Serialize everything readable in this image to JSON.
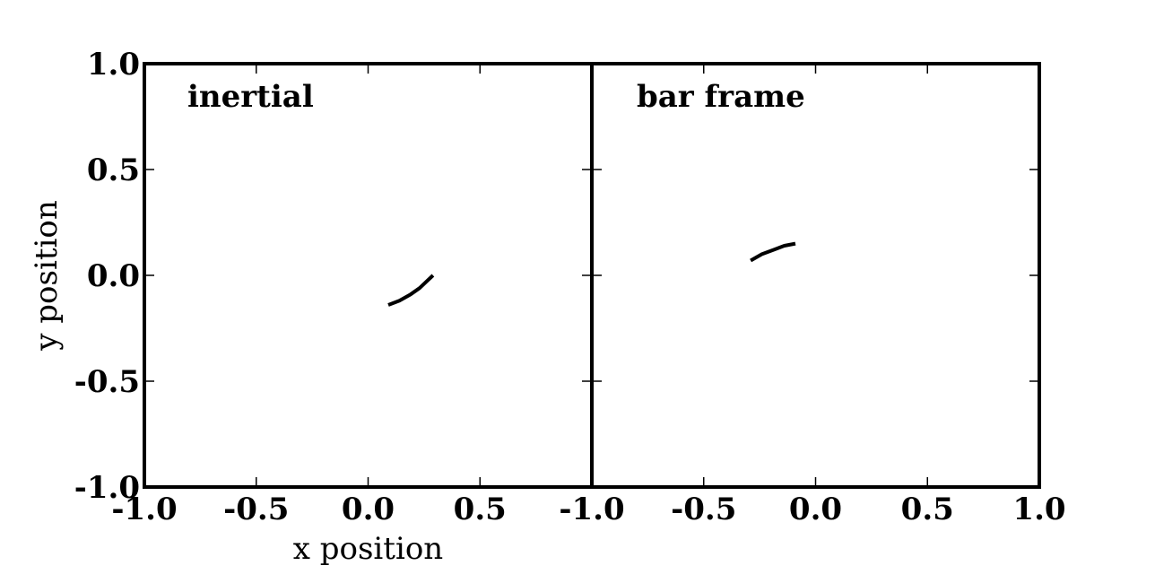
{
  "chart_data": [
    {
      "type": "line",
      "title": "inertial",
      "xlabel": "x position",
      "ylabel": "y position",
      "xlim": [
        -1.0,
        1.0
      ],
      "ylim": [
        -1.0,
        1.0
      ],
      "xticks": [
        -1.0,
        -0.5,
        0.0,
        0.5
      ],
      "xtick_labels": [
        "-1.0",
        "-0.5",
        "0.0",
        "0.5"
      ],
      "yticks": [
        -1.0,
        -0.5,
        0.0,
        0.5,
        1.0
      ],
      "ytick_labels": [
        "-1.0",
        "-0.5",
        "0.0",
        "0.5",
        "1.0"
      ],
      "grid": false,
      "series": [
        {
          "color": "#000000",
          "x": [
            0.09,
            0.14,
            0.19,
            0.23,
            0.26,
            0.29
          ],
          "y": [
            -0.14,
            -0.12,
            -0.09,
            -0.06,
            -0.03,
            0.0
          ]
        }
      ]
    },
    {
      "type": "line",
      "title": "bar frame",
      "xlabel": "",
      "ylabel": "",
      "xlim": [
        -1.0,
        1.0
      ],
      "ylim": [
        -1.0,
        1.0
      ],
      "xticks": [
        -1.0,
        -0.5,
        0.0,
        0.5,
        1.0
      ],
      "xtick_labels": [
        "-1.0",
        "-0.5",
        "0.0",
        "0.5",
        "1.0"
      ],
      "grid": false,
      "series": [
        {
          "color": "#000000",
          "x": [
            -0.29,
            -0.24,
            -0.19,
            -0.14,
            -0.09
          ],
          "y": [
            0.07,
            0.1,
            0.12,
            0.14,
            0.15
          ]
        }
      ]
    }
  ]
}
